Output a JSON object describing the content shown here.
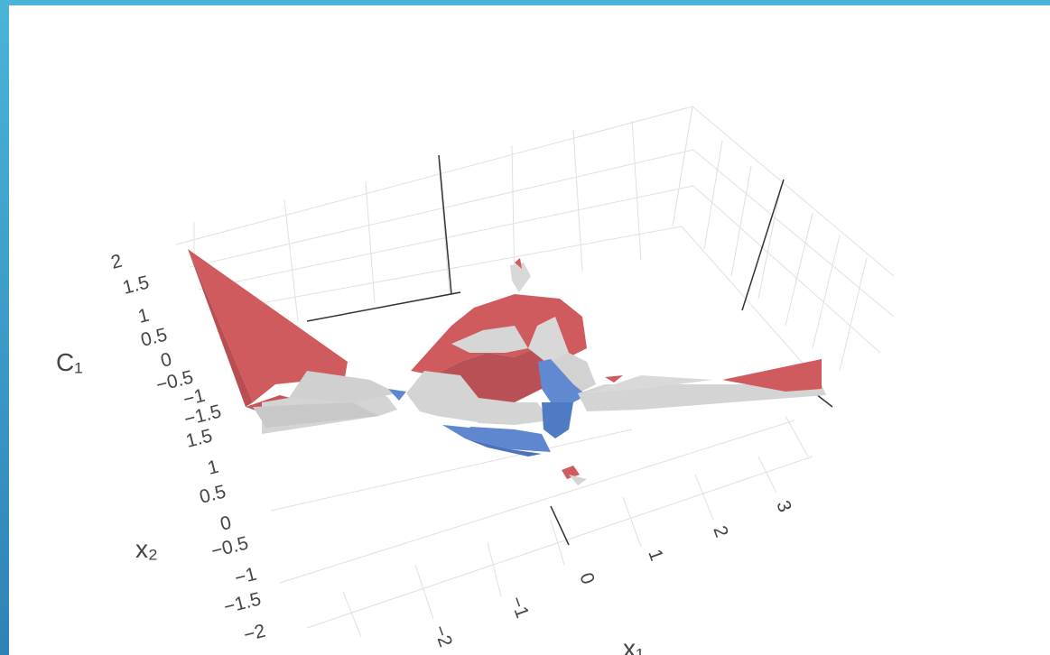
{
  "frame": {
    "accent": "#4ab4d8",
    "accent_dark": "#2f82b8"
  },
  "colors": {
    "positive": "#cf5b5e",
    "negative": "#5f87cf",
    "zero": "#d4d4d4",
    "grid": "#e0e0e0"
  },
  "chart_data": {
    "type": "surface3d",
    "title": "",
    "axes": {
      "x": {
        "label": "x₁",
        "ticks": [
          "−2",
          "−1",
          "0",
          "1",
          "2",
          "3"
        ]
      },
      "y": {
        "label": "x₂",
        "ticks": [
          "−2",
          "−1.5",
          "−1",
          "−0.5",
          "0",
          "0.5",
          "1",
          "1.5"
        ]
      },
      "z": {
        "label": "C₁",
        "ticks": [
          "−1.5",
          "−1",
          "−0.5",
          "0",
          "0.5",
          "1",
          "1.5",
          "2"
        ]
      }
    },
    "surface_colors": [
      "positive (red)",
      "zero (grey)",
      "negative (blue)"
    ],
    "grid": true,
    "legend": "none"
  }
}
